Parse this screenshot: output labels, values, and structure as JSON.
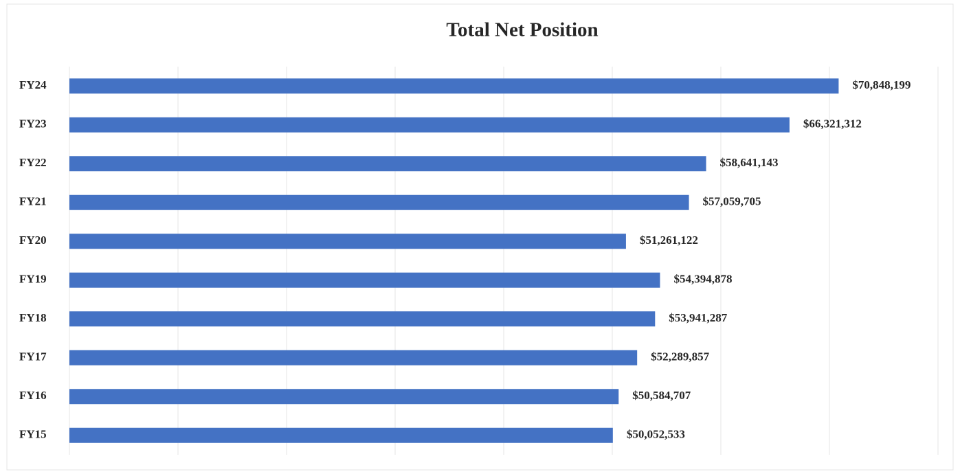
{
  "chart_data": {
    "type": "bar",
    "orientation": "horizontal",
    "title": "Total Net Position",
    "categories": [
      "FY24",
      "FY23",
      "FY22",
      "FY21",
      "FY20",
      "FY19",
      "FY18",
      "FY17",
      "FY16",
      "FY15"
    ],
    "values": [
      70848199,
      66321312,
      58641143,
      57059705,
      51261122,
      54394878,
      53941287,
      52289857,
      50584707,
      50052533
    ],
    "value_labels": [
      "$70,848,199",
      "$66,321,312",
      "$58,641,143",
      "$57,059,705",
      "$51,261,122",
      "$54,394,878",
      "$53,941,287",
      "$52,289,857",
      "$50,584,707",
      "$50,052,533"
    ],
    "color": "#4472c4",
    "xlim": [
      0,
      80000000
    ],
    "xticks": [
      0,
      10000000,
      20000000,
      30000000,
      40000000,
      50000000,
      60000000,
      70000000,
      80000000
    ],
    "grid": true
  }
}
